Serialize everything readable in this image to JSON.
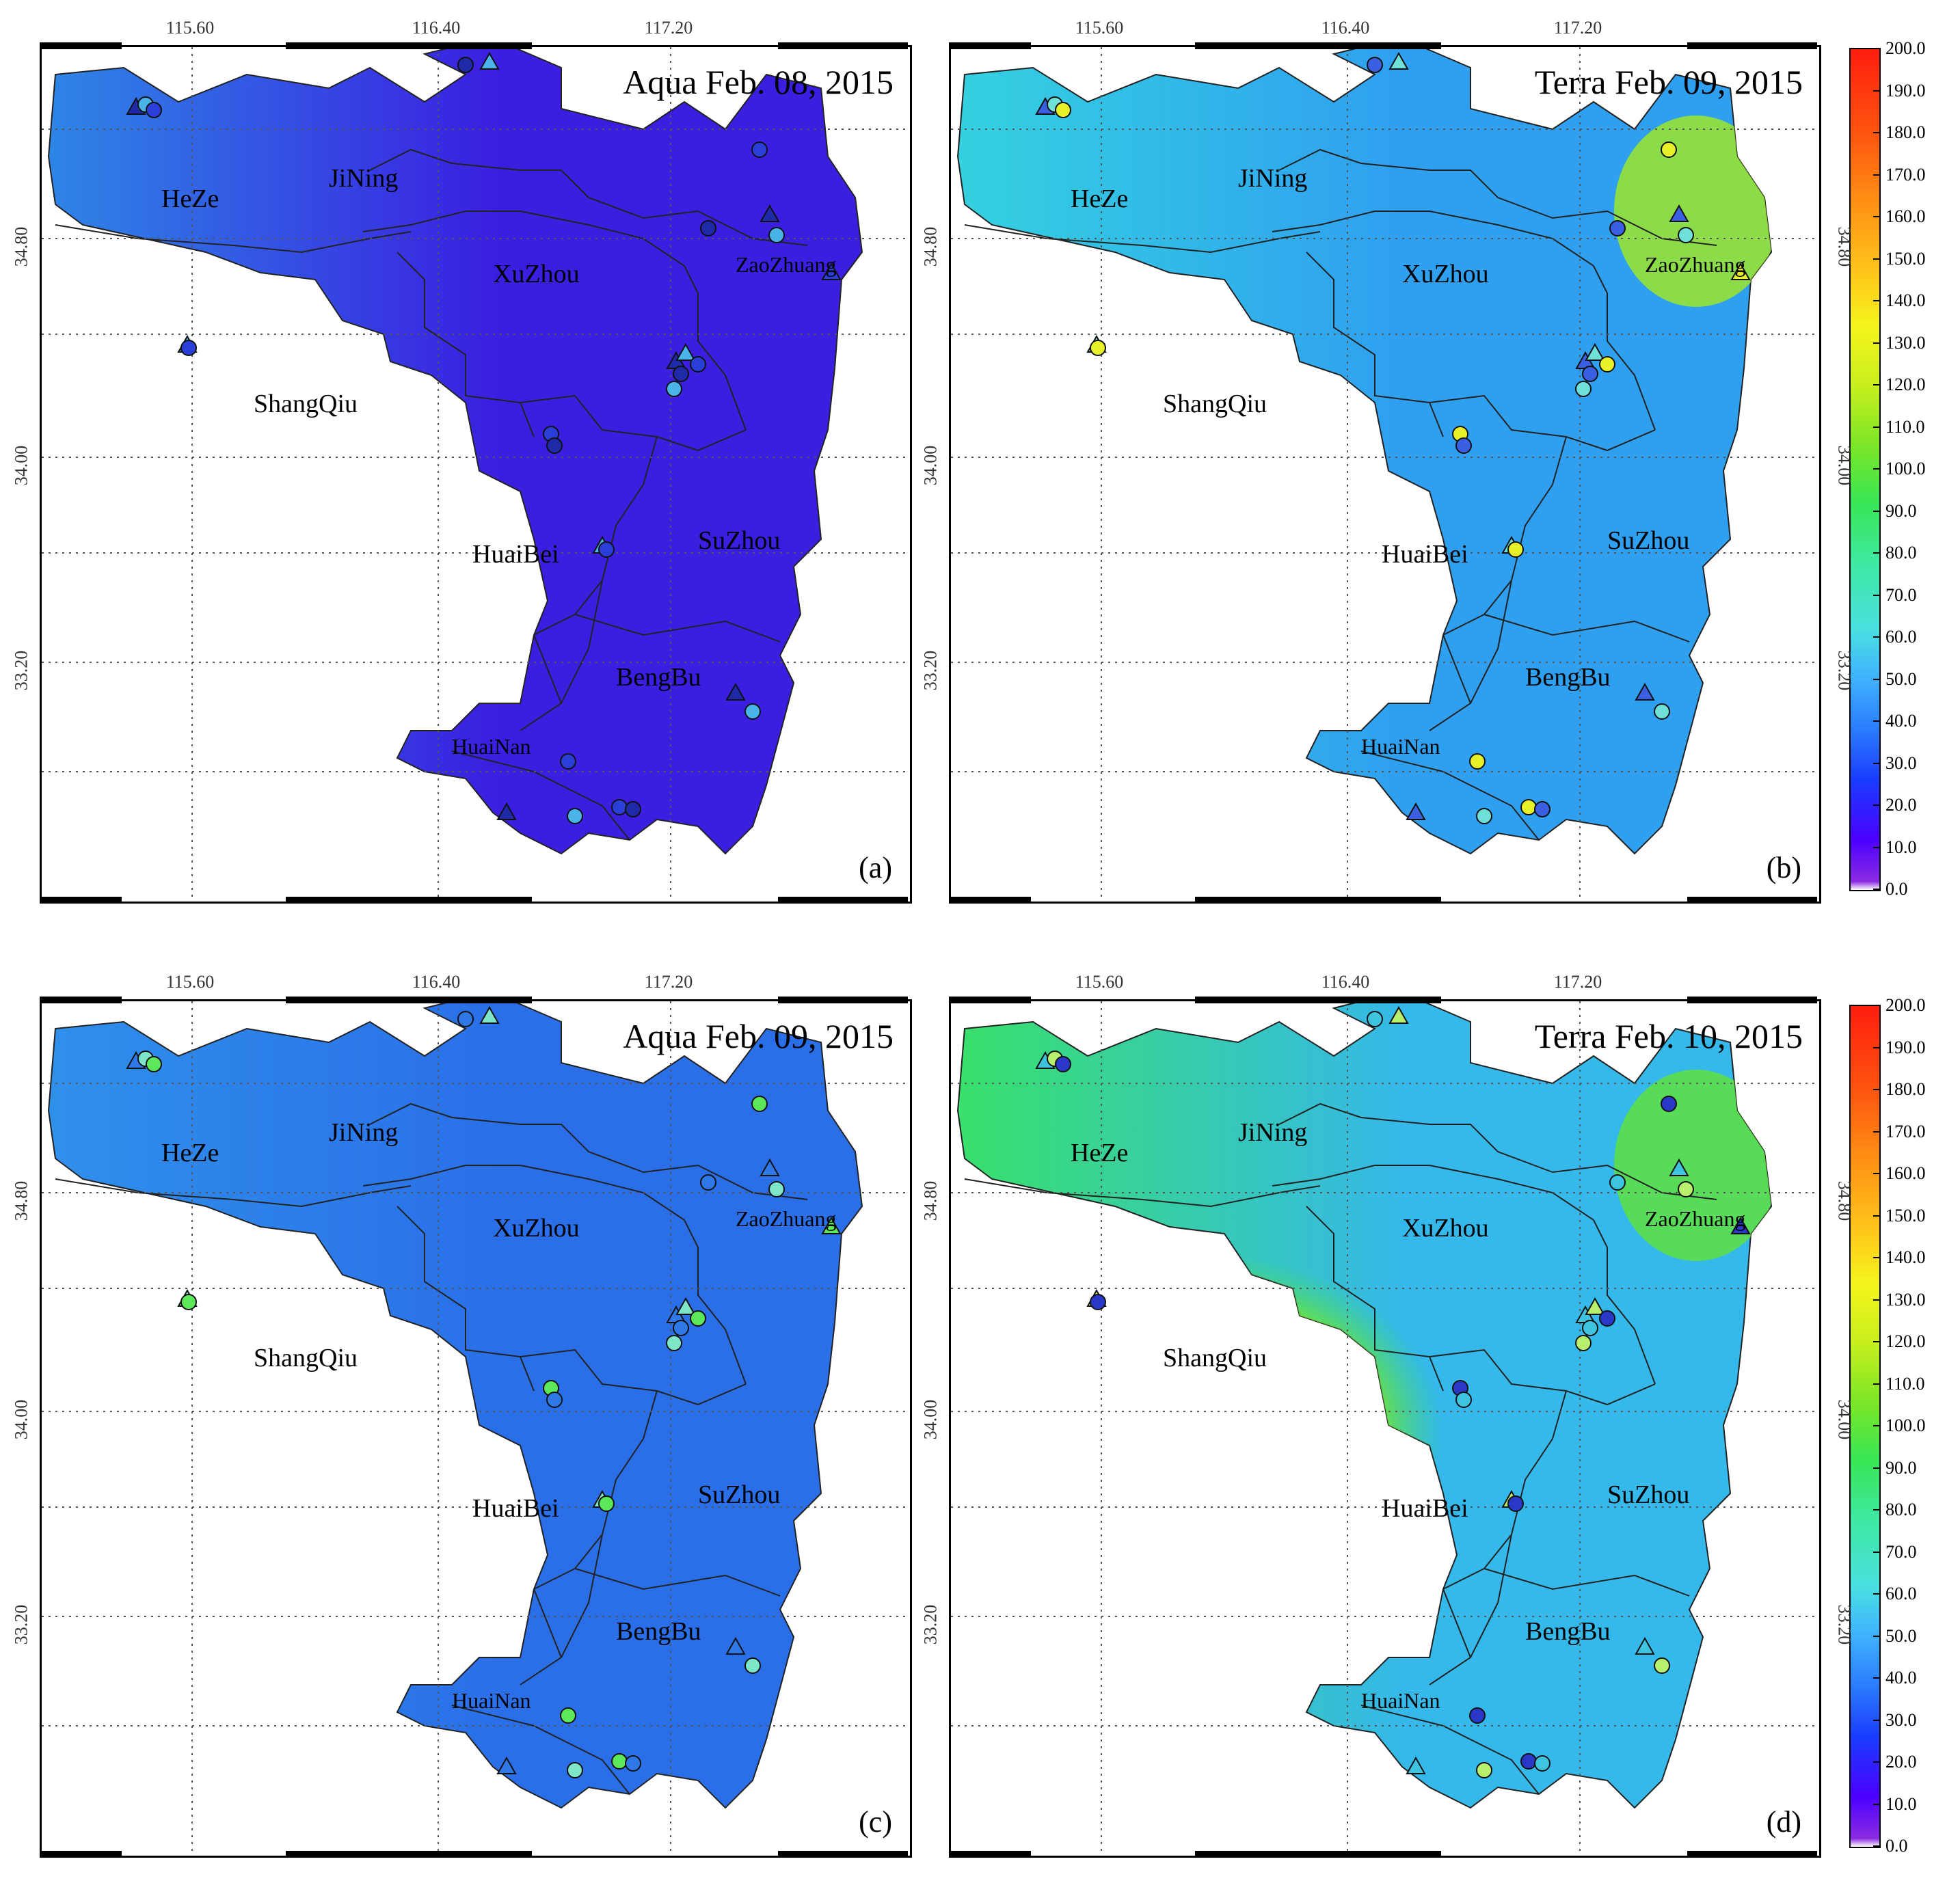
{
  "panels": {
    "a": {
      "title": "Aqua Feb. 08, 2015",
      "letter": "(a)",
      "fill": "#3a1fe0",
      "fill_west": "#2e86e6"
    },
    "b": {
      "title": "Terra Feb. 09, 2015",
      "letter": "(b)",
      "fill": "#2f9ff0",
      "fill_west": "#34d1e0"
    },
    "c": {
      "title": "Aqua Feb. 09, 2015",
      "letter": "(c)",
      "fill": "#2a6fe8",
      "fill_west": "#2f90ea"
    },
    "d": {
      "title": "Terra Feb. 10, 2015",
      "letter": "(d)",
      "fill": "#35b8ea",
      "fill_west": "#39e06a"
    }
  },
  "regions": {
    "heze": "HeZe",
    "jining": "JiNing",
    "xuzhou": "XuZhou",
    "zaozhuang": "ZaoZhuang",
    "shangqiu": "ShangQiu",
    "huaibei_ab": "HuaiBei",
    "huaibei_cd": "HuaiBei",
    "suzhou": "SuZhou",
    "bengbu": "BengBu",
    "huainan": "HuaiNan"
  },
  "lon_ticks": [
    "115.60",
    "116.40",
    "117.20"
  ],
  "lat_ticks": [
    "34.80",
    "34.00",
    "33.20"
  ],
  "colorbar": {
    "ticks": [
      "200.0",
      "190.0",
      "180.0",
      "170.0",
      "160.0",
      "150.0",
      "140.0",
      "130.0",
      "120.0",
      "110.0",
      "100.0",
      "90.0",
      "80.0",
      "70.0",
      "60.0",
      "50.0",
      "40.0",
      "30.0",
      "20.0",
      "10.0",
      "0.0"
    ]
  },
  "colors": {
    "boundary": "#222222",
    "grid": "#555555"
  }
}
